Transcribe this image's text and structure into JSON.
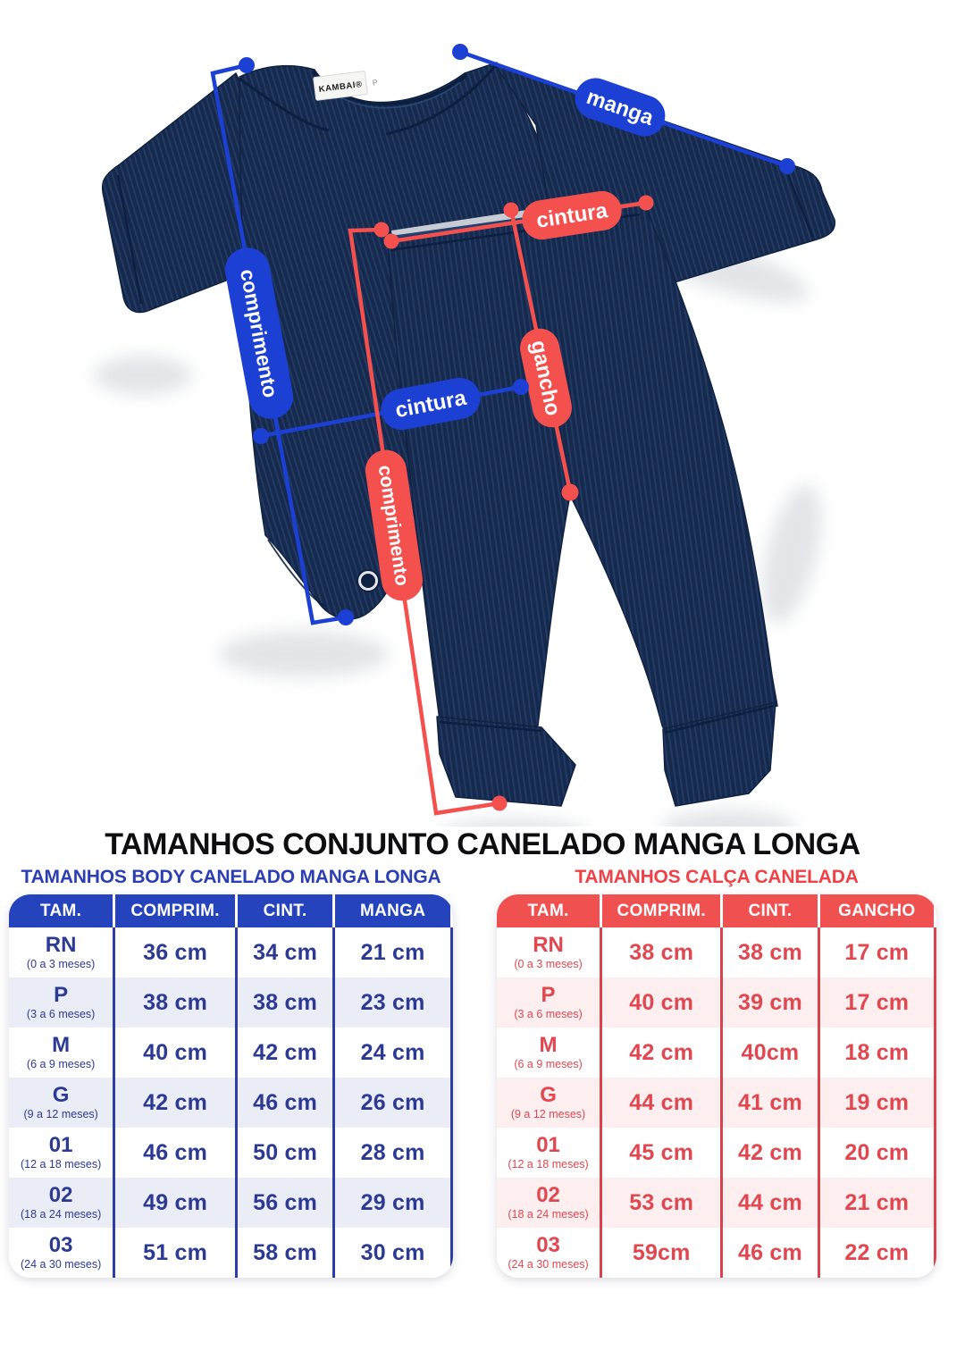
{
  "page": {
    "title": "TAMANHOS CONJUNTO CANELADO MANGA LONGA"
  },
  "diagram": {
    "brand_label": "KAMBAI®",
    "brand_size_tag": "P",
    "colors": {
      "blue": "#1c3fd4",
      "red": "#f4504e",
      "navy": "#16294c"
    },
    "pills": {
      "blue_comprimento": "comprimento",
      "blue_cintura": "cintura",
      "blue_manga": "manga",
      "red_comprimento": "comprimento",
      "red_cintura": "cintura",
      "red_gancho": "gancho"
    }
  },
  "body_table": {
    "title": "TAMANHOS BODY CANELADO MANGA LONGA",
    "headers": [
      "TAM.",
      "COMPRIM.",
      "CINT.",
      "MANGA"
    ],
    "rows": [
      {
        "size": "RN",
        "age": "(0 a 3 meses)",
        "values": [
          "36 cm",
          "34 cm",
          "21 cm"
        ]
      },
      {
        "size": "P",
        "age": "(3 a 6 meses)",
        "values": [
          "38 cm",
          "38 cm",
          "23 cm"
        ]
      },
      {
        "size": "M",
        "age": "(6 a 9 meses)",
        "values": [
          "40 cm",
          "42 cm",
          "24 cm"
        ]
      },
      {
        "size": "G",
        "age": "(9 a 12 meses)",
        "values": [
          "42 cm",
          "46 cm",
          "26 cm"
        ]
      },
      {
        "size": "01",
        "age": "(12 a 18 meses)",
        "values": [
          "46 cm",
          "50 cm",
          "28 cm"
        ]
      },
      {
        "size": "02",
        "age": "(18 a 24 meses)",
        "values": [
          "49 cm",
          "56 cm",
          "29 cm"
        ]
      },
      {
        "size": "03",
        "age": "(24 a 30 meses)",
        "values": [
          "51 cm",
          "58 cm",
          "30 cm"
        ]
      }
    ]
  },
  "pants_table": {
    "title": "TAMANHOS CALÇA CANELADA",
    "headers": [
      "TAM.",
      "COMPRIM.",
      "CINT.",
      "GANCHO"
    ],
    "rows": [
      {
        "size": "RN",
        "age": "(0 a 3 meses)",
        "values": [
          "38 cm",
          "38 cm",
          "17 cm"
        ]
      },
      {
        "size": "P",
        "age": "(3 a 6 meses)",
        "values": [
          "40 cm",
          "39 cm",
          "17 cm"
        ]
      },
      {
        "size": "M",
        "age": "(6 a 9 meses)",
        "values": [
          "42 cm",
          "40cm",
          "18 cm"
        ]
      },
      {
        "size": "G",
        "age": "(9 a 12 meses)",
        "values": [
          "44 cm",
          "41 cm",
          "19 cm"
        ]
      },
      {
        "size": "01",
        "age": "(12 a 18 meses)",
        "values": [
          "45 cm",
          "42 cm",
          "20 cm"
        ]
      },
      {
        "size": "02",
        "age": "(18 a 24 meses)",
        "values": [
          "53 cm",
          "44 cm",
          "21 cm"
        ]
      },
      {
        "size": "03",
        "age": "(24 a 30 meses)",
        "values": [
          "59cm",
          "46 cm",
          "22 cm"
        ]
      }
    ]
  }
}
